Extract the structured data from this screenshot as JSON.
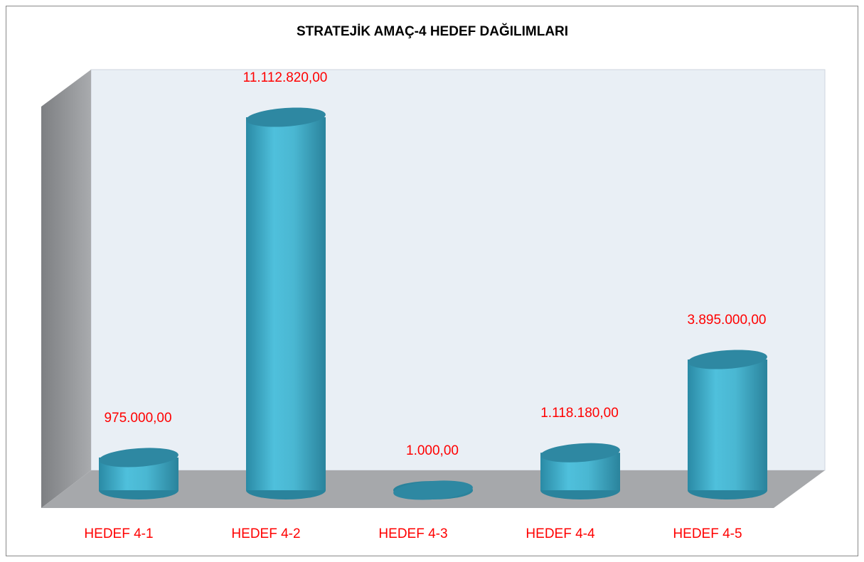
{
  "chart_data": {
    "type": "bar3d",
    "title": "STRATEJİK AMAÇ-4 HEDEF DAĞILIMLARI",
    "categories": [
      "HEDEF 4-1",
      "HEDEF 4-2",
      "HEDEF 4-3",
      "HEDEF 4-4",
      "HEDEF 4-5"
    ],
    "values": [
      975000,
      11112820,
      1000,
      1118180,
      3895000
    ],
    "value_labels": [
      "975.000,00",
      "11.112.820,00",
      "1.000,00",
      "1.118.180,00",
      "3.895.000,00"
    ],
    "color": "#4bb8d2",
    "label_color": "#ff0000"
  }
}
